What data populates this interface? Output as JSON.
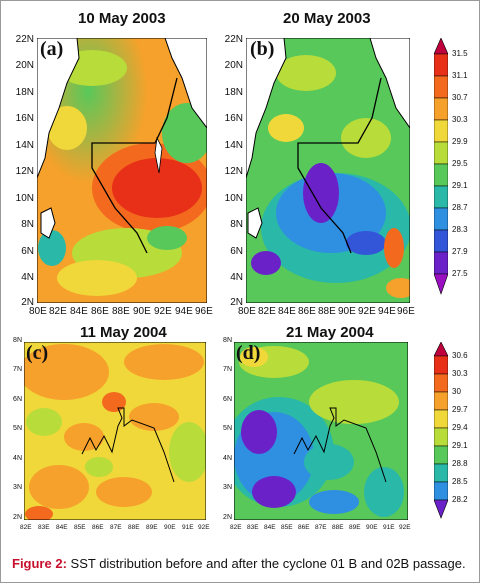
{
  "figure": {
    "caption_lead": "Figure 2:",
    "caption_text": "SST distribution before and after the cyclone 01 B and 02B passage."
  },
  "panels": [
    {
      "label": "(a)",
      "title": "10 May 2003",
      "y_ticks": [
        "22N",
        "20N",
        "18N",
        "16N",
        "14N",
        "12N",
        "10N",
        "8N",
        "6N",
        "4N",
        "2N"
      ],
      "x_ticks": [
        "80E",
        "82E",
        "84E",
        "86E",
        "88E",
        "90E",
        "92E",
        "94E",
        "96E"
      ]
    },
    {
      "label": "(b)",
      "title": "20 May 2003",
      "y_ticks": [
        "22N",
        "20N",
        "18N",
        "16N",
        "14N",
        "12N",
        "10N",
        "8N",
        "6N",
        "4N",
        "2N"
      ],
      "x_ticks": [
        "80E",
        "82E",
        "84E",
        "86E",
        "88E",
        "90E",
        "92E",
        "94E",
        "96E"
      ]
    },
    {
      "label": "(c)",
      "title": "11 May 2004",
      "y_ticks": [
        "8N",
        "7N",
        "6N",
        "5N",
        "4N",
        "3N",
        "2N"
      ],
      "x_ticks": [
        "82E",
        "83E",
        "84E",
        "85E",
        "86E",
        "87E",
        "88E",
        "89E",
        "90E",
        "91E",
        "92E"
      ]
    },
    {
      "label": "(d)",
      "title": "21 May 2004",
      "y_ticks": [
        "8N",
        "7N",
        "6N",
        "5N",
        "4N",
        "3N",
        "2N"
      ],
      "x_ticks": [
        "82E",
        "83E",
        "84E",
        "85E",
        "86E",
        "87E",
        "88E",
        "89E",
        "90E",
        "91E",
        "92E"
      ]
    }
  ],
  "colorbars": [
    {
      "labels": [
        "31.5",
        "31.1",
        "30.7",
        "30.3",
        "29.9",
        "29.5",
        "29.1",
        "28.7",
        "28.3",
        "27.9",
        "27.5"
      ],
      "colors": [
        "#c0003c",
        "#e83018",
        "#f36a1f",
        "#f6a12b",
        "#f0d83a",
        "#b8dc3a",
        "#58c85a",
        "#2ab8a8",
        "#2f8fe0",
        "#3355d8",
        "#6a22c8",
        "#9a10c0"
      ]
    },
    {
      "labels": [
        "30.6",
        "30.3",
        "30",
        "29.7",
        "29.4",
        "29.1",
        "28.8",
        "28.5",
        "28.2"
      ],
      "colors": [
        "#c0003c",
        "#e83018",
        "#f36a1f",
        "#f6a12b",
        "#f0d83a",
        "#b8dc3a",
        "#58c85a",
        "#2ab8a8",
        "#2f8fe0",
        "#6a22c8"
      ]
    }
  ],
  "palette": {
    "land": "#ffffff",
    "coast": "#000000",
    "track": "#000000"
  }
}
